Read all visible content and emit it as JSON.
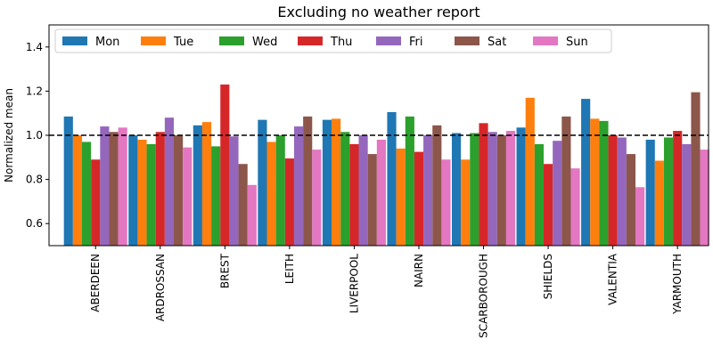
{
  "chart_data": {
    "type": "bar",
    "title": "Excluding no weather report",
    "xlabel": "",
    "ylabel": "Normalized mean",
    "ylim": [
      0.5,
      1.5
    ],
    "yticks": [
      0.6,
      0.8,
      1.0,
      1.2,
      1.4
    ],
    "reference_line": 1.0,
    "legend_position": "top",
    "categories": [
      "ABERDEEN",
      "ARDROSSAN",
      "BREST",
      "LEITH",
      "LIVERPOOL",
      "NAIRN",
      "SCARBOROUGH",
      "SHIELDS",
      "VALENTIA",
      "YARMOUTH"
    ],
    "series": [
      {
        "name": "Mon",
        "color": "#1f77b4",
        "values": [
          1.085,
          1.0,
          1.045,
          1.07,
          1.07,
          1.105,
          1.01,
          1.035,
          1.165,
          0.98
        ]
      },
      {
        "name": "Tue",
        "color": "#ff7f0e",
        "values": [
          1.0,
          0.98,
          1.06,
          0.97,
          1.075,
          0.94,
          0.89,
          1.17,
          1.075,
          0.885
        ]
      },
      {
        "name": "Wed",
        "color": "#2ca02c",
        "values": [
          0.97,
          0.96,
          0.95,
          1.0,
          1.015,
          1.085,
          1.01,
          0.96,
          1.065,
          0.99
        ]
      },
      {
        "name": "Thu",
        "color": "#d62728",
        "values": [
          0.89,
          1.015,
          1.23,
          0.895,
          0.96,
          0.925,
          1.055,
          0.87,
          1.0,
          1.02
        ]
      },
      {
        "name": "Fri",
        "color": "#9467bd",
        "values": [
          1.04,
          1.08,
          0.995,
          1.04,
          1.0,
          1.0,
          1.015,
          0.975,
          0.99,
          0.96
        ]
      },
      {
        "name": "Sat",
        "color": "#8c564b",
        "values": [
          1.015,
          1.0,
          0.87,
          1.085,
          0.915,
          1.045,
          1.0,
          1.085,
          0.915,
          1.195
        ]
      },
      {
        "name": "Sun",
        "color": "#e377c2",
        "values": [
          1.035,
          0.945,
          0.775,
          0.935,
          0.98,
          0.89,
          1.02,
          0.85,
          0.765,
          0.935
        ]
      }
    ]
  }
}
